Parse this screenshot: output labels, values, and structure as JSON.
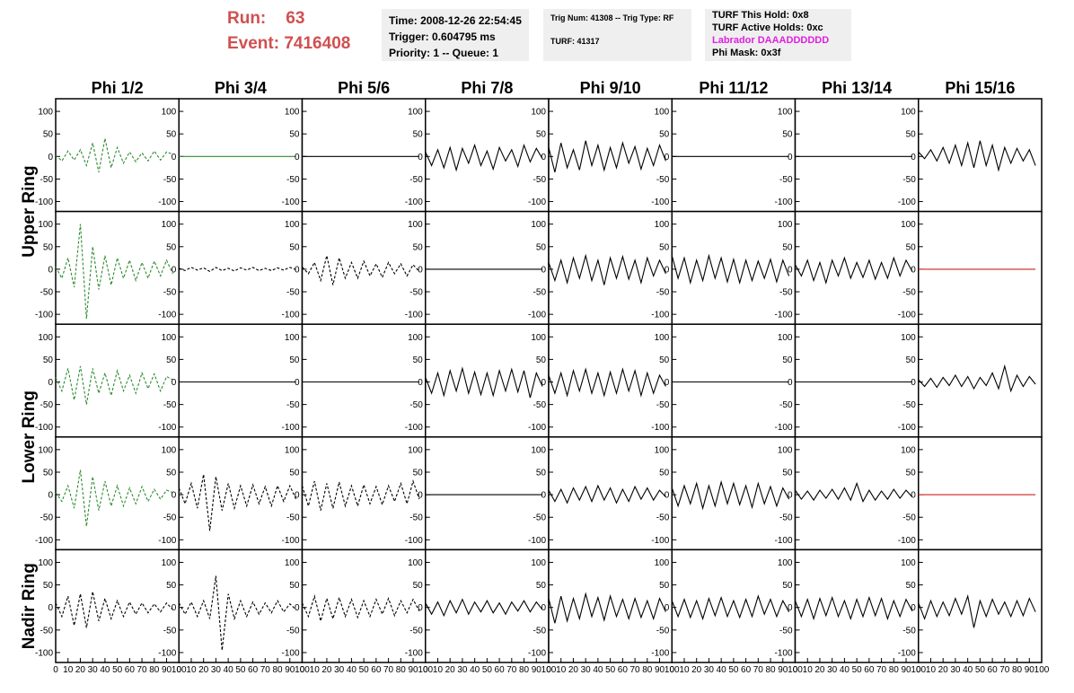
{
  "header": {
    "run_label": "Run:",
    "run": "63",
    "event_label": "Event:",
    "event": "7416408",
    "box1": [
      "Time: 2008-12-26 22:54:45",
      "Trigger: 0.604795 ms",
      "Priority: 1 -- Queue: 1"
    ],
    "box2": [
      "Trig Num: 41308 -- Trig Type: RF",
      "TURF: 41317"
    ],
    "box3": [
      "TURF This Hold: 0x8",
      "TURF Active Holds: 0xc",
      "Labrador DAAADDDDDD",
      "Phi Mask: 0x3f"
    ]
  },
  "chart_data": {
    "type": "waveform-grid",
    "columns": [
      "Phi 1/2",
      "Phi 3/4",
      "Phi 5/6",
      "Phi 7/8",
      "Phi 9/10",
      "Phi 11/12",
      "Phi 13/14",
      "Phi 15/16"
    ],
    "ring_labels": [
      "Upper Ring",
      "Lower Ring",
      "Nadir Ring"
    ],
    "xlim": [
      0,
      100
    ],
    "xticks": [
      0,
      10,
      20,
      30,
      40,
      50,
      60,
      70,
      80,
      90,
      100
    ],
    "ylim": [
      -122,
      128
    ],
    "yticks": [
      -100,
      -50,
      0,
      50,
      100
    ],
    "x": [
      0,
      5,
      10,
      15,
      20,
      25,
      30,
      35,
      40,
      45,
      50,
      55,
      60,
      65,
      70,
      75,
      80,
      85,
      90,
      95
    ],
    "panels": [
      [
        {
          "color": "#2e8b2e",
          "dashed": true,
          "values": [
            3,
            -10,
            12,
            -8,
            15,
            -20,
            30,
            -35,
            40,
            -25,
            20,
            -15,
            10,
            -12,
            8,
            -10,
            12,
            -8,
            10,
            5
          ]
        },
        {
          "color": "#2e8b2e",
          "dashed": false,
          "values": [
            0,
            0,
            0,
            0,
            0,
            0,
            0,
            0,
            0,
            0,
            0,
            0,
            0,
            0,
            0,
            0,
            0,
            0,
            0,
            0
          ]
        },
        {
          "color": "#000000",
          "dashed": false,
          "values": [
            0,
            0,
            0,
            0,
            0,
            0,
            0,
            0,
            0,
            0,
            0,
            0,
            0,
            0,
            0,
            0,
            0,
            0,
            0,
            0
          ]
        },
        {
          "color": "#000000",
          "dashed": false,
          "values": [
            10,
            -20,
            15,
            -25,
            20,
            -30,
            18,
            -15,
            25,
            -20,
            12,
            -28,
            20,
            -10,
            15,
            -22,
            25,
            -12,
            18,
            -5
          ]
        },
        {
          "color": "#000000",
          "dashed": false,
          "values": [
            20,
            -35,
            30,
            -25,
            15,
            -30,
            35,
            -20,
            25,
            -30,
            20,
            -25,
            30,
            -15,
            22,
            -28,
            18,
            -20,
            25,
            -10
          ]
        },
        {
          "color": "#000000",
          "dashed": false,
          "values": [
            0,
            0,
            0,
            0,
            0,
            0,
            0,
            0,
            0,
            0,
            0,
            0,
            0,
            0,
            0,
            0,
            0,
            0,
            0,
            0
          ]
        },
        {
          "color": "#000000",
          "dashed": false,
          "values": [
            0,
            0,
            0,
            0,
            0,
            0,
            0,
            0,
            0,
            0,
            0,
            0,
            0,
            0,
            0,
            0,
            0,
            0,
            0,
            0
          ]
        },
        {
          "color": "#000000",
          "dashed": false,
          "values": [
            10,
            -5,
            15,
            -10,
            20,
            -15,
            25,
            -20,
            30,
            -25,
            35,
            -20,
            25,
            -30,
            20,
            -15,
            18,
            -10,
            15,
            -20
          ]
        }
      ],
      [
        {
          "color": "#2e8b2e",
          "dashed": true,
          "values": [
            5,
            -20,
            25,
            -40,
            100,
            -110,
            50,
            -45,
            30,
            -35,
            25,
            -20,
            20,
            -25,
            15,
            -20,
            18,
            -15,
            20,
            -10
          ]
        },
        {
          "color": "#000000",
          "dashed": true,
          "values": [
            2,
            -3,
            4,
            -2,
            3,
            -5,
            4,
            -3,
            2,
            -4,
            3,
            -2,
            4,
            -3,
            2,
            -3,
            3,
            -2,
            4,
            -1
          ]
        },
        {
          "color": "#000000",
          "dashed": true,
          "values": [
            5,
            -10,
            15,
            -25,
            30,
            -35,
            25,
            -20,
            15,
            -20,
            18,
            -15,
            12,
            -18,
            15,
            -10,
            12,
            -15,
            10,
            -5
          ]
        },
        {
          "color": "#000000",
          "dashed": false,
          "values": [
            0,
            0,
            0,
            0,
            0,
            0,
            0,
            0,
            0,
            0,
            0,
            0,
            0,
            0,
            0,
            0,
            0,
            0,
            0,
            0
          ]
        },
        {
          "color": "#000000",
          "dashed": false,
          "values": [
            15,
            -25,
            20,
            -30,
            25,
            -20,
            30,
            -25,
            20,
            -35,
            25,
            -20,
            28,
            -22,
            20,
            -30,
            25,
            -15,
            20,
            -10
          ]
        },
        {
          "color": "#000000",
          "dashed": false,
          "values": [
            30,
            -20,
            25,
            -30,
            20,
            -25,
            30,
            -20,
            25,
            -28,
            22,
            -30,
            20,
            -25,
            18,
            -20,
            22,
            -28,
            20,
            -15
          ]
        },
        {
          "color": "#000000",
          "dashed": false,
          "values": [
            10,
            -15,
            20,
            -25,
            15,
            -30,
            20,
            -15,
            25,
            -20,
            15,
            -18,
            20,
            -22,
            15,
            -20,
            25,
            -15,
            20,
            -5
          ]
        },
        {
          "color": "#cc2222",
          "dashed": false,
          "values": [
            0,
            0,
            0,
            0,
            0,
            0,
            0,
            0,
            0,
            0,
            0,
            0,
            0,
            0,
            0,
            0,
            0,
            0,
            0,
            0
          ]
        }
      ],
      [
        {
          "color": "#2e8b2e",
          "dashed": true,
          "values": [
            10,
            -20,
            30,
            -40,
            35,
            -50,
            30,
            -25,
            20,
            -30,
            25,
            -20,
            15,
            -25,
            20,
            -15,
            18,
            -20,
            12,
            5
          ]
        },
        {
          "color": "#000000",
          "dashed": false,
          "values": [
            0,
            0,
            0,
            0,
            0,
            0,
            0,
            0,
            0,
            0,
            0,
            0,
            0,
            0,
            0,
            0,
            0,
            0,
            0,
            0
          ]
        },
        {
          "color": "#000000",
          "dashed": false,
          "values": [
            0,
            0,
            0,
            0,
            0,
            0,
            0,
            0,
            0,
            0,
            0,
            0,
            0,
            0,
            0,
            0,
            0,
            0,
            0,
            0
          ]
        },
        {
          "color": "#000000",
          "dashed": false,
          "values": [
            10,
            -25,
            20,
            -30,
            25,
            -20,
            30,
            -25,
            22,
            -28,
            20,
            -30,
            25,
            -20,
            28,
            -22,
            25,
            -35,
            20,
            -10
          ]
        },
        {
          "color": "#000000",
          "dashed": false,
          "values": [
            15,
            -25,
            20,
            -30,
            25,
            -20,
            28,
            -25,
            20,
            -30,
            22,
            -25,
            28,
            -20,
            25,
            -30,
            20,
            -25,
            15,
            -10
          ]
        },
        {
          "color": "#000000",
          "dashed": false,
          "values": [
            0,
            0,
            0,
            0,
            0,
            0,
            0,
            0,
            0,
            0,
            0,
            0,
            0,
            0,
            0,
            0,
            0,
            0,
            0,
            0
          ]
        },
        {
          "color": "#000000",
          "dashed": false,
          "values": [
            0,
            0,
            0,
            0,
            0,
            0,
            0,
            0,
            0,
            0,
            0,
            0,
            0,
            0,
            0,
            0,
            0,
            0,
            0,
            0
          ]
        },
        {
          "color": "#000000",
          "dashed": false,
          "values": [
            5,
            -10,
            8,
            -12,
            10,
            -8,
            15,
            -10,
            12,
            -15,
            10,
            -8,
            20,
            -15,
            35,
            -20,
            15,
            -10,
            12,
            -5
          ]
        }
      ],
      [
        {
          "color": "#2e8b2e",
          "dashed": true,
          "values": [
            5,
            -15,
            20,
            -30,
            55,
            -70,
            40,
            -35,
            30,
            -25,
            20,
            -25,
            15,
            -20,
            18,
            -15,
            12,
            -10,
            10,
            5
          ]
        },
        {
          "color": "#000000",
          "dashed": true,
          "values": [
            15,
            -20,
            25,
            -30,
            45,
            -80,
            40,
            -35,
            25,
            -30,
            20,
            -25,
            22,
            -20,
            18,
            -25,
            20,
            -15,
            20,
            -10
          ]
        },
        {
          "color": "#000000",
          "dashed": true,
          "values": [
            20,
            -25,
            30,
            -35,
            25,
            -30,
            28,
            -25,
            20,
            -25,
            22,
            -20,
            18,
            -22,
            20,
            -15,
            25,
            -20,
            30,
            -10
          ]
        },
        {
          "color": "#000000",
          "dashed": false,
          "values": [
            0,
            0,
            0,
            0,
            0,
            0,
            0,
            0,
            0,
            0,
            0,
            0,
            0,
            0,
            0,
            0,
            0,
            0,
            0,
            0
          ]
        },
        {
          "color": "#000000",
          "dashed": false,
          "values": [
            10,
            -15,
            12,
            -18,
            15,
            -12,
            18,
            -15,
            20,
            -12,
            15,
            -18,
            12,
            -15,
            18,
            -10,
            15,
            -12,
            10,
            -5
          ]
        },
        {
          "color": "#000000",
          "dashed": false,
          "values": [
            15,
            -25,
            20,
            -20,
            25,
            -30,
            20,
            -25,
            28,
            -20,
            25,
            -22,
            20,
            -28,
            25,
            -20,
            18,
            -25,
            15,
            -10
          ]
        },
        {
          "color": "#000000",
          "dashed": false,
          "values": [
            10,
            -10,
            8,
            -12,
            10,
            -8,
            12,
            -10,
            15,
            -12,
            25,
            -15,
            10,
            -12,
            8,
            -10,
            12,
            -8,
            10,
            -5
          ]
        },
        {
          "color": "#cc2222",
          "dashed": false,
          "values": [
            0,
            0,
            0,
            0,
            0,
            0,
            0,
            0,
            0,
            0,
            0,
            0,
            0,
            0,
            0,
            0,
            0,
            0,
            0,
            0
          ]
        }
      ],
      [
        {
          "color": "#000000",
          "dashed": true,
          "values": [
            10,
            -20,
            25,
            -40,
            30,
            -45,
            35,
            -30,
            20,
            -25,
            15,
            -20,
            12,
            -15,
            10,
            -12,
            8,
            -10,
            10,
            -5
          ]
        },
        {
          "color": "#000000",
          "dashed": true,
          "values": [
            10,
            -15,
            12,
            -20,
            15,
            -25,
            70,
            -95,
            30,
            -25,
            15,
            -20,
            12,
            -15,
            10,
            -12,
            15,
            -10,
            8,
            -5
          ]
        },
        {
          "color": "#000000",
          "dashed": true,
          "values": [
            10,
            -20,
            25,
            -30,
            20,
            -25,
            22,
            -20,
            18,
            -22,
            15,
            -20,
            18,
            -15,
            20,
            -18,
            15,
            -12,
            18,
            -8
          ]
        },
        {
          "color": "#000000",
          "dashed": false,
          "values": [
            10,
            -15,
            12,
            -18,
            15,
            -12,
            18,
            -15,
            12,
            -10,
            15,
            -12,
            10,
            -15,
            12,
            -8,
            15,
            -10,
            12,
            -5
          ]
        },
        {
          "color": "#000000",
          "dashed": false,
          "values": [
            20,
            -35,
            25,
            -30,
            20,
            -25,
            30,
            -20,
            22,
            -28,
            25,
            -20,
            18,
            -25,
            20,
            -22,
            15,
            -25,
            20,
            -10
          ]
        },
        {
          "color": "#000000",
          "dashed": false,
          "values": [
            15,
            -20,
            18,
            -22,
            15,
            -25,
            20,
            -18,
            22,
            -20,
            15,
            -22,
            18,
            -20,
            25,
            -15,
            18,
            -20,
            15,
            -10
          ]
        },
        {
          "color": "#000000",
          "dashed": false,
          "values": [
            15,
            -20,
            18,
            -25,
            20,
            -18,
            22,
            -20,
            15,
            -25,
            18,
            -20,
            22,
            -18,
            20,
            -25,
            15,
            -20,
            18,
            -8
          ]
        },
        {
          "color": "#000000",
          "dashed": false,
          "values": [
            10,
            -25,
            15,
            -20,
            12,
            -18,
            20,
            -15,
            25,
            -45,
            15,
            -20,
            18,
            -15,
            12,
            -20,
            15,
            -18,
            20,
            -10
          ]
        }
      ]
    ]
  }
}
